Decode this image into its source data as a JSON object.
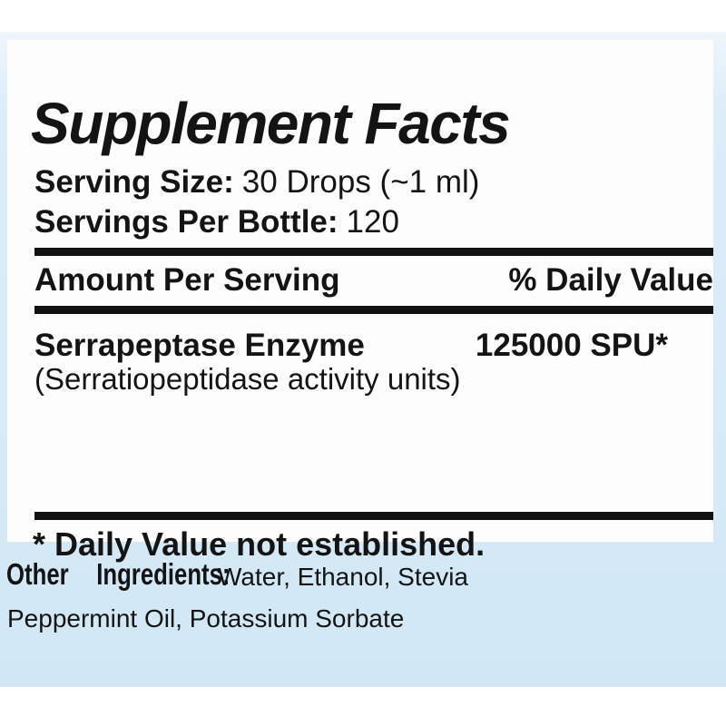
{
  "colors": {
    "page_background": "#ffffff",
    "frame_blue": "#d7eaf7",
    "panel_background": "#fdfdfe",
    "text": "#141414",
    "bar_black": "#111111"
  },
  "panel": {
    "title": "Supplement Facts",
    "serving_size": {
      "label": "Serving Size:",
      "value": "30 Drops (~1 ml)"
    },
    "servings_per_bottle": {
      "label": "Servings Per Bottle:",
      "value": "120"
    },
    "columns": {
      "amount": "Amount Per Serving",
      "daily_value": "% Daily Value"
    },
    "rows": [
      {
        "name": "Serrapeptase Enzyme",
        "detail": "(Serratiopeptidase activity units)",
        "amount": "125000 SPU*"
      }
    ],
    "footnote": "* Daily Value not established."
  },
  "other_ingredients": {
    "label": "Other Ingredients:",
    "line1": "Water, Ethanol, Stevia",
    "line2": "Peppermint Oil, Potassium Sorbate"
  }
}
